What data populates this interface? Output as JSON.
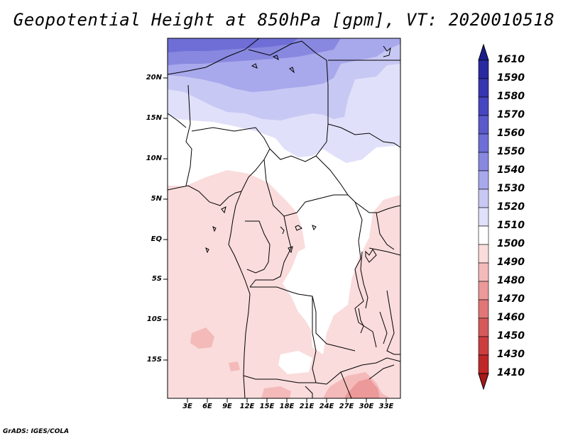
{
  "title": "Geopotential Height at 850hPa [gpm], VT: 2020010518",
  "credit": "GrADS: IGES/COLA",
  "map": {
    "lat_labels": [
      "20N",
      "15N",
      "10N",
      "5N",
      "EQ",
      "5S",
      "10S",
      "15S"
    ],
    "lon_labels": [
      "3E",
      "6E",
      "9E",
      "12E",
      "15E",
      "18E",
      "21E",
      "24E",
      "27E",
      "30E",
      "33E"
    ]
  },
  "colorbar": {
    "levels": [
      "1610",
      "1590",
      "1580",
      "1570",
      "1560",
      "1550",
      "1540",
      "1530",
      "1520",
      "1510",
      "1500",
      "1490",
      "1480",
      "1470",
      "1460",
      "1450",
      "1430",
      "1410"
    ],
    "colors": [
      "#1c1c8e",
      "#2a2aa0",
      "#3636b0",
      "#4646c0",
      "#5a5acb",
      "#6e6ed6",
      "#8888e0",
      "#a8a8ec",
      "#c8c8f4",
      "#e0e0fa",
      "#ffffff",
      "#fadcdc",
      "#f4baba",
      "#ec9999",
      "#e07676",
      "#d65a5a",
      "#cc3e3e",
      "#c02828",
      "#a81818"
    ]
  }
}
